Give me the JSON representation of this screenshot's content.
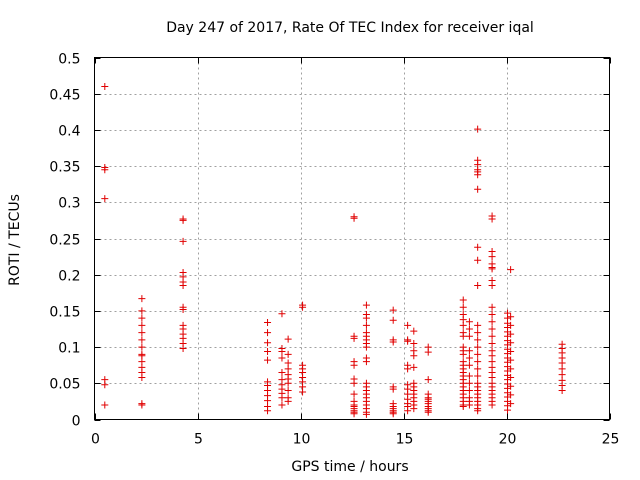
{
  "chart_data": {
    "type": "scatter",
    "title": "Day 247 of 2017, Rate Of TEC Index for receiver iqal",
    "xlabel": "GPS time / hours",
    "ylabel": "ROTI / TECUs",
    "xlim": [
      0,
      25
    ],
    "ylim": [
      0,
      0.5
    ],
    "xticks": [
      "0",
      "5",
      "10",
      "15",
      "20",
      "25"
    ],
    "yticks": [
      "0",
      "0.05",
      "0.1",
      "0.15",
      "0.2",
      "0.25",
      "0.3",
      "0.35",
      "0.4",
      "0.45",
      "0.5"
    ],
    "grid": true,
    "marker": "plus",
    "color": "#e00000",
    "series": [
      {
        "name": "ROTI",
        "points": [
          [
            0.5,
            0.46
          ],
          [
            0.5,
            0.348
          ],
          [
            0.5,
            0.345
          ],
          [
            0.5,
            0.305
          ],
          [
            0.5,
            0.055
          ],
          [
            0.5,
            0.048
          ],
          [
            0.5,
            0.02
          ],
          [
            2.3,
            0.167
          ],
          [
            2.3,
            0.15
          ],
          [
            2.3,
            0.14
          ],
          [
            2.3,
            0.13
          ],
          [
            2.3,
            0.12
          ],
          [
            2.3,
            0.11
          ],
          [
            2.3,
            0.1
          ],
          [
            2.3,
            0.09
          ],
          [
            2.3,
            0.088
          ],
          [
            2.3,
            0.08
          ],
          [
            2.3,
            0.072
          ],
          [
            2.3,
            0.065
          ],
          [
            2.3,
            0.058
          ],
          [
            2.3,
            0.022
          ],
          [
            2.3,
            0.02
          ],
          [
            4.3,
            0.277
          ],
          [
            4.3,
            0.275
          ],
          [
            4.3,
            0.246
          ],
          [
            4.3,
            0.203
          ],
          [
            4.3,
            0.197
          ],
          [
            4.3,
            0.19
          ],
          [
            4.3,
            0.185
          ],
          [
            4.3,
            0.155
          ],
          [
            4.3,
            0.152
          ],
          [
            4.3,
            0.13
          ],
          [
            4.3,
            0.125
          ],
          [
            4.3,
            0.118
          ],
          [
            4.3,
            0.112
          ],
          [
            4.3,
            0.105
          ],
          [
            4.3,
            0.098
          ],
          [
            8.4,
            0.134
          ],
          [
            8.4,
            0.12
          ],
          [
            8.4,
            0.106
          ],
          [
            8.4,
            0.094
          ],
          [
            8.4,
            0.082
          ],
          [
            8.4,
            0.052
          ],
          [
            8.4,
            0.047
          ],
          [
            8.4,
            0.04
          ],
          [
            8.4,
            0.033
          ],
          [
            8.4,
            0.026
          ],
          [
            8.4,
            0.018
          ],
          [
            8.4,
            0.012
          ],
          [
            9.1,
            0.146
          ],
          [
            9.1,
            0.098
          ],
          [
            9.1,
            0.094
          ],
          [
            9.1,
            0.085
          ],
          [
            9.1,
            0.065
          ],
          [
            9.1,
            0.055
          ],
          [
            9.1,
            0.048
          ],
          [
            9.1,
            0.042
          ],
          [
            9.1,
            0.036
          ],
          [
            9.1,
            0.03
          ],
          [
            9.1,
            0.02
          ],
          [
            9.4,
            0.111
          ],
          [
            9.4,
            0.09
          ],
          [
            9.4,
            0.078
          ],
          [
            9.4,
            0.07
          ],
          [
            9.4,
            0.062
          ],
          [
            9.4,
            0.056
          ],
          [
            9.4,
            0.05
          ],
          [
            9.4,
            0.04
          ],
          [
            9.4,
            0.03
          ],
          [
            9.4,
            0.025
          ],
          [
            10.1,
            0.158
          ],
          [
            10.1,
            0.155
          ],
          [
            10.1,
            0.075
          ],
          [
            10.1,
            0.07
          ],
          [
            10.1,
            0.065
          ],
          [
            10.1,
            0.058
          ],
          [
            10.1,
            0.052
          ],
          [
            10.1,
            0.045
          ],
          [
            10.1,
            0.038
          ],
          [
            12.6,
            0.28
          ],
          [
            12.6,
            0.278
          ],
          [
            12.6,
            0.115
          ],
          [
            12.6,
            0.112
          ],
          [
            12.6,
            0.08
          ],
          [
            12.6,
            0.075
          ],
          [
            12.6,
            0.056
          ],
          [
            12.6,
            0.05
          ],
          [
            12.6,
            0.035
          ],
          [
            12.6,
            0.025
          ],
          [
            12.6,
            0.02
          ],
          [
            12.6,
            0.018
          ],
          [
            12.6,
            0.015
          ],
          [
            12.6,
            0.012
          ],
          [
            12.6,
            0.01
          ],
          [
            12.6,
            0.008
          ],
          [
            13.2,
            0.158
          ],
          [
            13.2,
            0.145
          ],
          [
            13.2,
            0.14
          ],
          [
            13.2,
            0.13
          ],
          [
            13.2,
            0.12
          ],
          [
            13.2,
            0.115
          ],
          [
            13.2,
            0.11
          ],
          [
            13.2,
            0.105
          ],
          [
            13.2,
            0.1
          ],
          [
            13.2,
            0.085
          ],
          [
            13.2,
            0.08
          ],
          [
            13.2,
            0.05
          ],
          [
            13.2,
            0.045
          ],
          [
            13.2,
            0.04
          ],
          [
            13.2,
            0.035
          ],
          [
            13.2,
            0.03
          ],
          [
            13.2,
            0.025
          ],
          [
            13.2,
            0.02
          ],
          [
            13.2,
            0.015
          ],
          [
            13.2,
            0.01
          ],
          [
            13.2,
            0.007
          ],
          [
            14.5,
            0.151
          ],
          [
            14.5,
            0.137
          ],
          [
            14.5,
            0.11
          ],
          [
            14.5,
            0.107
          ],
          [
            14.5,
            0.045
          ],
          [
            14.5,
            0.042
          ],
          [
            14.5,
            0.022
          ],
          [
            14.5,
            0.018
          ],
          [
            14.5,
            0.015
          ],
          [
            14.5,
            0.012
          ],
          [
            14.5,
            0.01
          ],
          [
            14.5,
            0.008
          ],
          [
            15.2,
            0.13
          ],
          [
            15.2,
            0.11
          ],
          [
            15.2,
            0.108
          ],
          [
            15.2,
            0.075
          ],
          [
            15.2,
            0.07
          ],
          [
            15.2,
            0.048
          ],
          [
            15.2,
            0.042
          ],
          [
            15.2,
            0.035
          ],
          [
            15.2,
            0.028
          ],
          [
            15.2,
            0.022
          ],
          [
            15.2,
            0.018
          ],
          [
            15.2,
            0.012
          ],
          [
            15.5,
            0.122
          ],
          [
            15.5,
            0.105
          ],
          [
            15.5,
            0.095
          ],
          [
            15.5,
            0.088
          ],
          [
            15.5,
            0.072
          ],
          [
            15.5,
            0.05
          ],
          [
            15.5,
            0.045
          ],
          [
            15.5,
            0.04
          ],
          [
            15.5,
            0.035
          ],
          [
            15.5,
            0.03
          ],
          [
            15.5,
            0.025
          ],
          [
            15.5,
            0.02
          ],
          [
            15.5,
            0.015
          ],
          [
            16.2,
            0.1
          ],
          [
            16.2,
            0.093
          ],
          [
            16.2,
            0.055
          ],
          [
            16.2,
            0.035
          ],
          [
            16.2,
            0.03
          ],
          [
            16.2,
            0.028
          ],
          [
            16.2,
            0.025
          ],
          [
            16.2,
            0.022
          ],
          [
            16.2,
            0.018
          ],
          [
            16.2,
            0.015
          ],
          [
            16.2,
            0.012
          ],
          [
            16.2,
            0.01
          ],
          [
            17.9,
            0.165
          ],
          [
            17.9,
            0.155
          ],
          [
            17.9,
            0.145
          ],
          [
            17.9,
            0.138
          ],
          [
            17.9,
            0.13
          ],
          [
            17.9,
            0.12
          ],
          [
            17.9,
            0.115
          ],
          [
            17.9,
            0.1
          ],
          [
            17.9,
            0.095
          ],
          [
            17.9,
            0.09
          ],
          [
            17.9,
            0.08
          ],
          [
            17.9,
            0.075
          ],
          [
            17.9,
            0.07
          ],
          [
            17.9,
            0.065
          ],
          [
            17.9,
            0.06
          ],
          [
            17.9,
            0.055
          ],
          [
            17.9,
            0.05
          ],
          [
            17.9,
            0.045
          ],
          [
            17.9,
            0.04
          ],
          [
            17.9,
            0.035
          ],
          [
            17.9,
            0.03
          ],
          [
            17.9,
            0.025
          ],
          [
            17.9,
            0.02
          ],
          [
            17.9,
            0.018
          ],
          [
            18.2,
            0.135
          ],
          [
            18.2,
            0.125
          ],
          [
            18.2,
            0.115
          ],
          [
            18.2,
            0.095
          ],
          [
            18.2,
            0.085
          ],
          [
            18.2,
            0.075
          ],
          [
            18.2,
            0.06
          ],
          [
            18.2,
            0.05
          ],
          [
            18.2,
            0.04
          ],
          [
            18.2,
            0.03
          ],
          [
            18.2,
            0.025
          ],
          [
            18.2,
            0.02
          ],
          [
            18.6,
            0.401
          ],
          [
            18.6,
            0.358
          ],
          [
            18.6,
            0.352
          ],
          [
            18.6,
            0.345
          ],
          [
            18.6,
            0.342
          ],
          [
            18.6,
            0.338
          ],
          [
            18.6,
            0.318
          ],
          [
            18.6,
            0.238
          ],
          [
            18.6,
            0.22
          ],
          [
            18.6,
            0.185
          ],
          [
            18.6,
            0.13
          ],
          [
            18.6,
            0.12
          ],
          [
            18.6,
            0.11
          ],
          [
            18.6,
            0.1
          ],
          [
            18.6,
            0.09
          ],
          [
            18.6,
            0.08
          ],
          [
            18.6,
            0.07
          ],
          [
            18.6,
            0.06
          ],
          [
            18.6,
            0.05
          ],
          [
            18.6,
            0.045
          ],
          [
            18.6,
            0.04
          ],
          [
            18.6,
            0.035
          ],
          [
            18.6,
            0.03
          ],
          [
            18.6,
            0.025
          ],
          [
            18.6,
            0.02
          ],
          [
            18.6,
            0.015
          ],
          [
            18.6,
            0.012
          ],
          [
            19.3,
            0.281
          ],
          [
            19.3,
            0.277
          ],
          [
            19.3,
            0.232
          ],
          [
            19.3,
            0.225
          ],
          [
            19.3,
            0.215
          ],
          [
            19.3,
            0.21
          ],
          [
            19.3,
            0.208
          ],
          [
            19.3,
            0.192
          ],
          [
            19.3,
            0.185
          ],
          [
            19.3,
            0.155
          ],
          [
            19.3,
            0.145
          ],
          [
            19.3,
            0.135
          ],
          [
            19.3,
            0.125
          ],
          [
            19.3,
            0.115
          ],
          [
            19.3,
            0.105
          ],
          [
            19.3,
            0.095
          ],
          [
            19.3,
            0.088
          ],
          [
            19.3,
            0.08
          ],
          [
            19.3,
            0.072
          ],
          [
            19.3,
            0.065
          ],
          [
            19.3,
            0.058
          ],
          [
            19.3,
            0.05
          ],
          [
            19.3,
            0.045
          ],
          [
            19.3,
            0.04
          ],
          [
            19.3,
            0.035
          ],
          [
            19.3,
            0.03
          ],
          [
            19.3,
            0.025
          ],
          [
            19.3,
            0.02
          ],
          [
            20.05,
            0.147
          ],
          [
            20.05,
            0.14
          ],
          [
            20.05,
            0.133
          ],
          [
            20.05,
            0.127
          ],
          [
            20.05,
            0.121
          ],
          [
            20.05,
            0.115
          ],
          [
            20.05,
            0.109
          ],
          [
            20.05,
            0.103
          ],
          [
            20.05,
            0.097
          ],
          [
            20.05,
            0.091
          ],
          [
            20.05,
            0.085
          ],
          [
            20.05,
            0.079
          ],
          [
            20.05,
            0.073
          ],
          [
            20.05,
            0.067
          ],
          [
            20.05,
            0.061
          ],
          [
            20.05,
            0.055
          ],
          [
            20.05,
            0.049
          ],
          [
            20.05,
            0.043
          ],
          [
            20.05,
            0.037
          ],
          [
            20.05,
            0.031
          ],
          [
            20.05,
            0.025
          ],
          [
            20.05,
            0.019
          ],
          [
            20.05,
            0.013
          ],
          [
            20.2,
            0.207
          ],
          [
            20.2,
            0.142
          ],
          [
            20.2,
            0.13
          ],
          [
            20.2,
            0.118
          ],
          [
            20.2,
            0.106
          ],
          [
            20.2,
            0.094
          ],
          [
            20.2,
            0.082
          ],
          [
            20.2,
            0.07
          ],
          [
            20.2,
            0.058
          ],
          [
            20.2,
            0.046
          ],
          [
            20.2,
            0.034
          ],
          [
            20.2,
            0.022
          ],
          [
            22.7,
            0.104
          ],
          [
            22.7,
            0.098
          ],
          [
            22.7,
            0.092
          ],
          [
            22.7,
            0.085
          ],
          [
            22.7,
            0.078
          ],
          [
            22.7,
            0.07
          ],
          [
            22.7,
            0.062
          ],
          [
            22.7,
            0.054
          ],
          [
            22.7,
            0.047
          ],
          [
            22.7,
            0.04
          ]
        ]
      }
    ]
  }
}
